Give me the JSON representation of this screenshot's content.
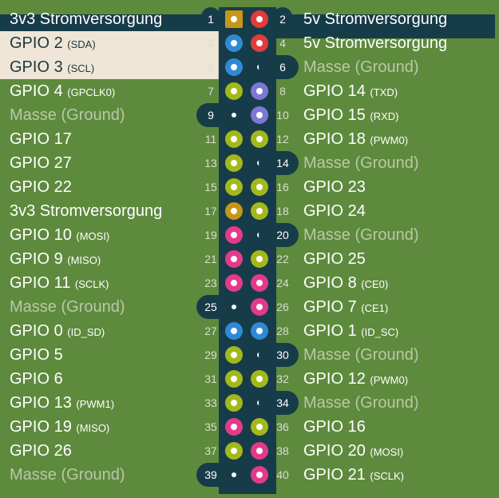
{
  "rows": [
    {
      "left_text": "3v3 Stromversorgung",
      "left_suffix": "",
      "left_pin": "1",
      "right_pin": "2",
      "right_text": "5v Stromversorgung",
      "right_suffix": "",
      "left_color": "gold",
      "right_color": "red",
      "left_icon": "power-pin-square-icon",
      "right_icon": "power-pin-icon"
    },
    {
      "left_text": "GPIO 2",
      "left_suffix": "(SDA)",
      "left_pin": "3",
      "right_pin": "4",
      "right_text": "5v Stromversorgung",
      "right_suffix": "",
      "left_color": "blue",
      "right_color": "red",
      "left_icon": "gpio-pin-icon",
      "right_icon": "power-pin-icon"
    },
    {
      "left_text": "GPIO 3",
      "left_suffix": "(SCL)",
      "left_pin": "5",
      "right_pin": "6",
      "right_text": "Masse (Ground)",
      "right_suffix": "",
      "left_color": "blue",
      "right_color": "ground",
      "left_icon": "gpio-pin-icon",
      "right_icon": "ground-pin-icon"
    },
    {
      "left_text": "GPIO 4",
      "left_suffix": "(GPCLK0)",
      "left_pin": "7",
      "right_pin": "8",
      "right_text": "GPIO 14",
      "right_suffix": "(TXD)",
      "left_color": "olive",
      "right_color": "purple",
      "left_icon": "gpio-pin-icon",
      "right_icon": "gpio-pin-icon"
    },
    {
      "left_text": "Masse (Ground)",
      "left_suffix": "",
      "left_pin": "9",
      "right_pin": "10",
      "right_text": "GPIO 15",
      "right_suffix": "(RXD)",
      "left_color": "ground",
      "right_color": "purple",
      "left_icon": "ground-pin-icon",
      "right_icon": "gpio-pin-icon"
    },
    {
      "left_text": "GPIO 17",
      "left_suffix": "",
      "left_pin": "11",
      "right_pin": "12",
      "right_text": "GPIO 18",
      "right_suffix": "(PWM0)",
      "left_color": "olive",
      "right_color": "olive",
      "left_icon": "gpio-pin-icon",
      "right_icon": "gpio-pin-icon"
    },
    {
      "left_text": "GPIO 27",
      "left_suffix": "",
      "left_pin": "13",
      "right_pin": "14",
      "right_text": "Masse (Ground)",
      "right_suffix": "",
      "left_color": "olive",
      "right_color": "ground",
      "left_icon": "gpio-pin-icon",
      "right_icon": "ground-pin-icon"
    },
    {
      "left_text": "GPIO 22",
      "left_suffix": "",
      "left_pin": "15",
      "right_pin": "16",
      "right_text": "GPIO 23",
      "right_suffix": "",
      "left_color": "olive",
      "right_color": "olive",
      "left_icon": "gpio-pin-icon",
      "right_icon": "gpio-pin-icon"
    },
    {
      "left_text": "3v3 Stromversorgung",
      "left_suffix": "",
      "left_pin": "17",
      "right_pin": "18",
      "right_text": "GPIO 24",
      "right_suffix": "",
      "left_color": "gold",
      "right_color": "olive",
      "left_icon": "power-pin-icon",
      "right_icon": "gpio-pin-icon"
    },
    {
      "left_text": "GPIO 10",
      "left_suffix": "(MOSI)",
      "left_pin": "19",
      "right_pin": "20",
      "right_text": "Masse (Ground)",
      "right_suffix": "",
      "left_color": "pink",
      "right_color": "ground",
      "left_icon": "gpio-pin-icon",
      "right_icon": "ground-pin-icon"
    },
    {
      "left_text": "GPIO 9",
      "left_suffix": "(MISO)",
      "left_pin": "21",
      "right_pin": "22",
      "right_text": "GPIO 25",
      "right_suffix": "",
      "left_color": "pink",
      "right_color": "olive",
      "left_icon": "gpio-pin-icon",
      "right_icon": "gpio-pin-icon"
    },
    {
      "left_text": "GPIO 11",
      "left_suffix": "(SCLK)",
      "left_pin": "23",
      "right_pin": "24",
      "right_text": "GPIO 8",
      "right_suffix": "(CE0)",
      "left_color": "pink",
      "right_color": "pink",
      "left_icon": "gpio-pin-icon",
      "right_icon": "gpio-pin-icon"
    },
    {
      "left_text": "Masse (Ground)",
      "left_suffix": "",
      "left_pin": "25",
      "right_pin": "26",
      "right_text": "GPIO 7",
      "right_suffix": "(CE1)",
      "left_color": "ground",
      "right_color": "pink",
      "left_icon": "ground-pin-icon",
      "right_icon": "gpio-pin-icon"
    },
    {
      "left_text": "GPIO 0",
      "left_suffix": "(ID_SD)",
      "left_pin": "27",
      "right_pin": "28",
      "right_text": "GPIO 1",
      "right_suffix": "(ID_SC)",
      "left_color": "blue",
      "right_color": "blue",
      "left_icon": "gpio-pin-icon",
      "right_icon": "gpio-pin-icon"
    },
    {
      "left_text": "GPIO 5",
      "left_suffix": "",
      "left_pin": "29",
      "right_pin": "30",
      "right_text": "Masse (Ground)",
      "right_suffix": "",
      "left_color": "olive",
      "right_color": "ground",
      "left_icon": "gpio-pin-icon",
      "right_icon": "ground-pin-icon"
    },
    {
      "left_text": "GPIO 6",
      "left_suffix": "",
      "left_pin": "31",
      "right_pin": "32",
      "right_text": "GPIO 12",
      "right_suffix": "(PWM0)",
      "left_color": "olive",
      "right_color": "olive",
      "left_icon": "gpio-pin-icon",
      "right_icon": "gpio-pin-icon"
    },
    {
      "left_text": "GPIO 13",
      "left_suffix": "(PWM1)",
      "left_pin": "33",
      "right_pin": "34",
      "right_text": "Masse (Ground)",
      "right_suffix": "",
      "left_color": "olive",
      "right_color": "ground",
      "left_icon": "gpio-pin-icon",
      "right_icon": "ground-pin-icon"
    },
    {
      "left_text": "GPIO 19",
      "left_suffix": "(MISO)",
      "left_pin": "35",
      "right_pin": "36",
      "right_text": "GPIO 16",
      "right_suffix": "",
      "left_color": "pink",
      "right_color": "olive",
      "left_icon": "gpio-pin-icon",
      "right_icon": "gpio-pin-icon"
    },
    {
      "left_text": "GPIO 26",
      "left_suffix": "",
      "left_pin": "37",
      "right_pin": "38",
      "right_text": "GPIO 20",
      "right_suffix": "(MOSI)",
      "left_color": "olive",
      "right_color": "pink",
      "left_icon": "gpio-pin-icon",
      "right_icon": "gpio-pin-icon"
    },
    {
      "left_text": "Masse (Ground)",
      "left_suffix": "",
      "left_pin": "39",
      "right_pin": "40",
      "right_text": "GPIO 21",
      "right_suffix": "(SCLK)",
      "left_color": "ground",
      "right_color": "pink",
      "left_icon": "ground-pin-icon",
      "right_icon": "gpio-pin-icon"
    }
  ]
}
